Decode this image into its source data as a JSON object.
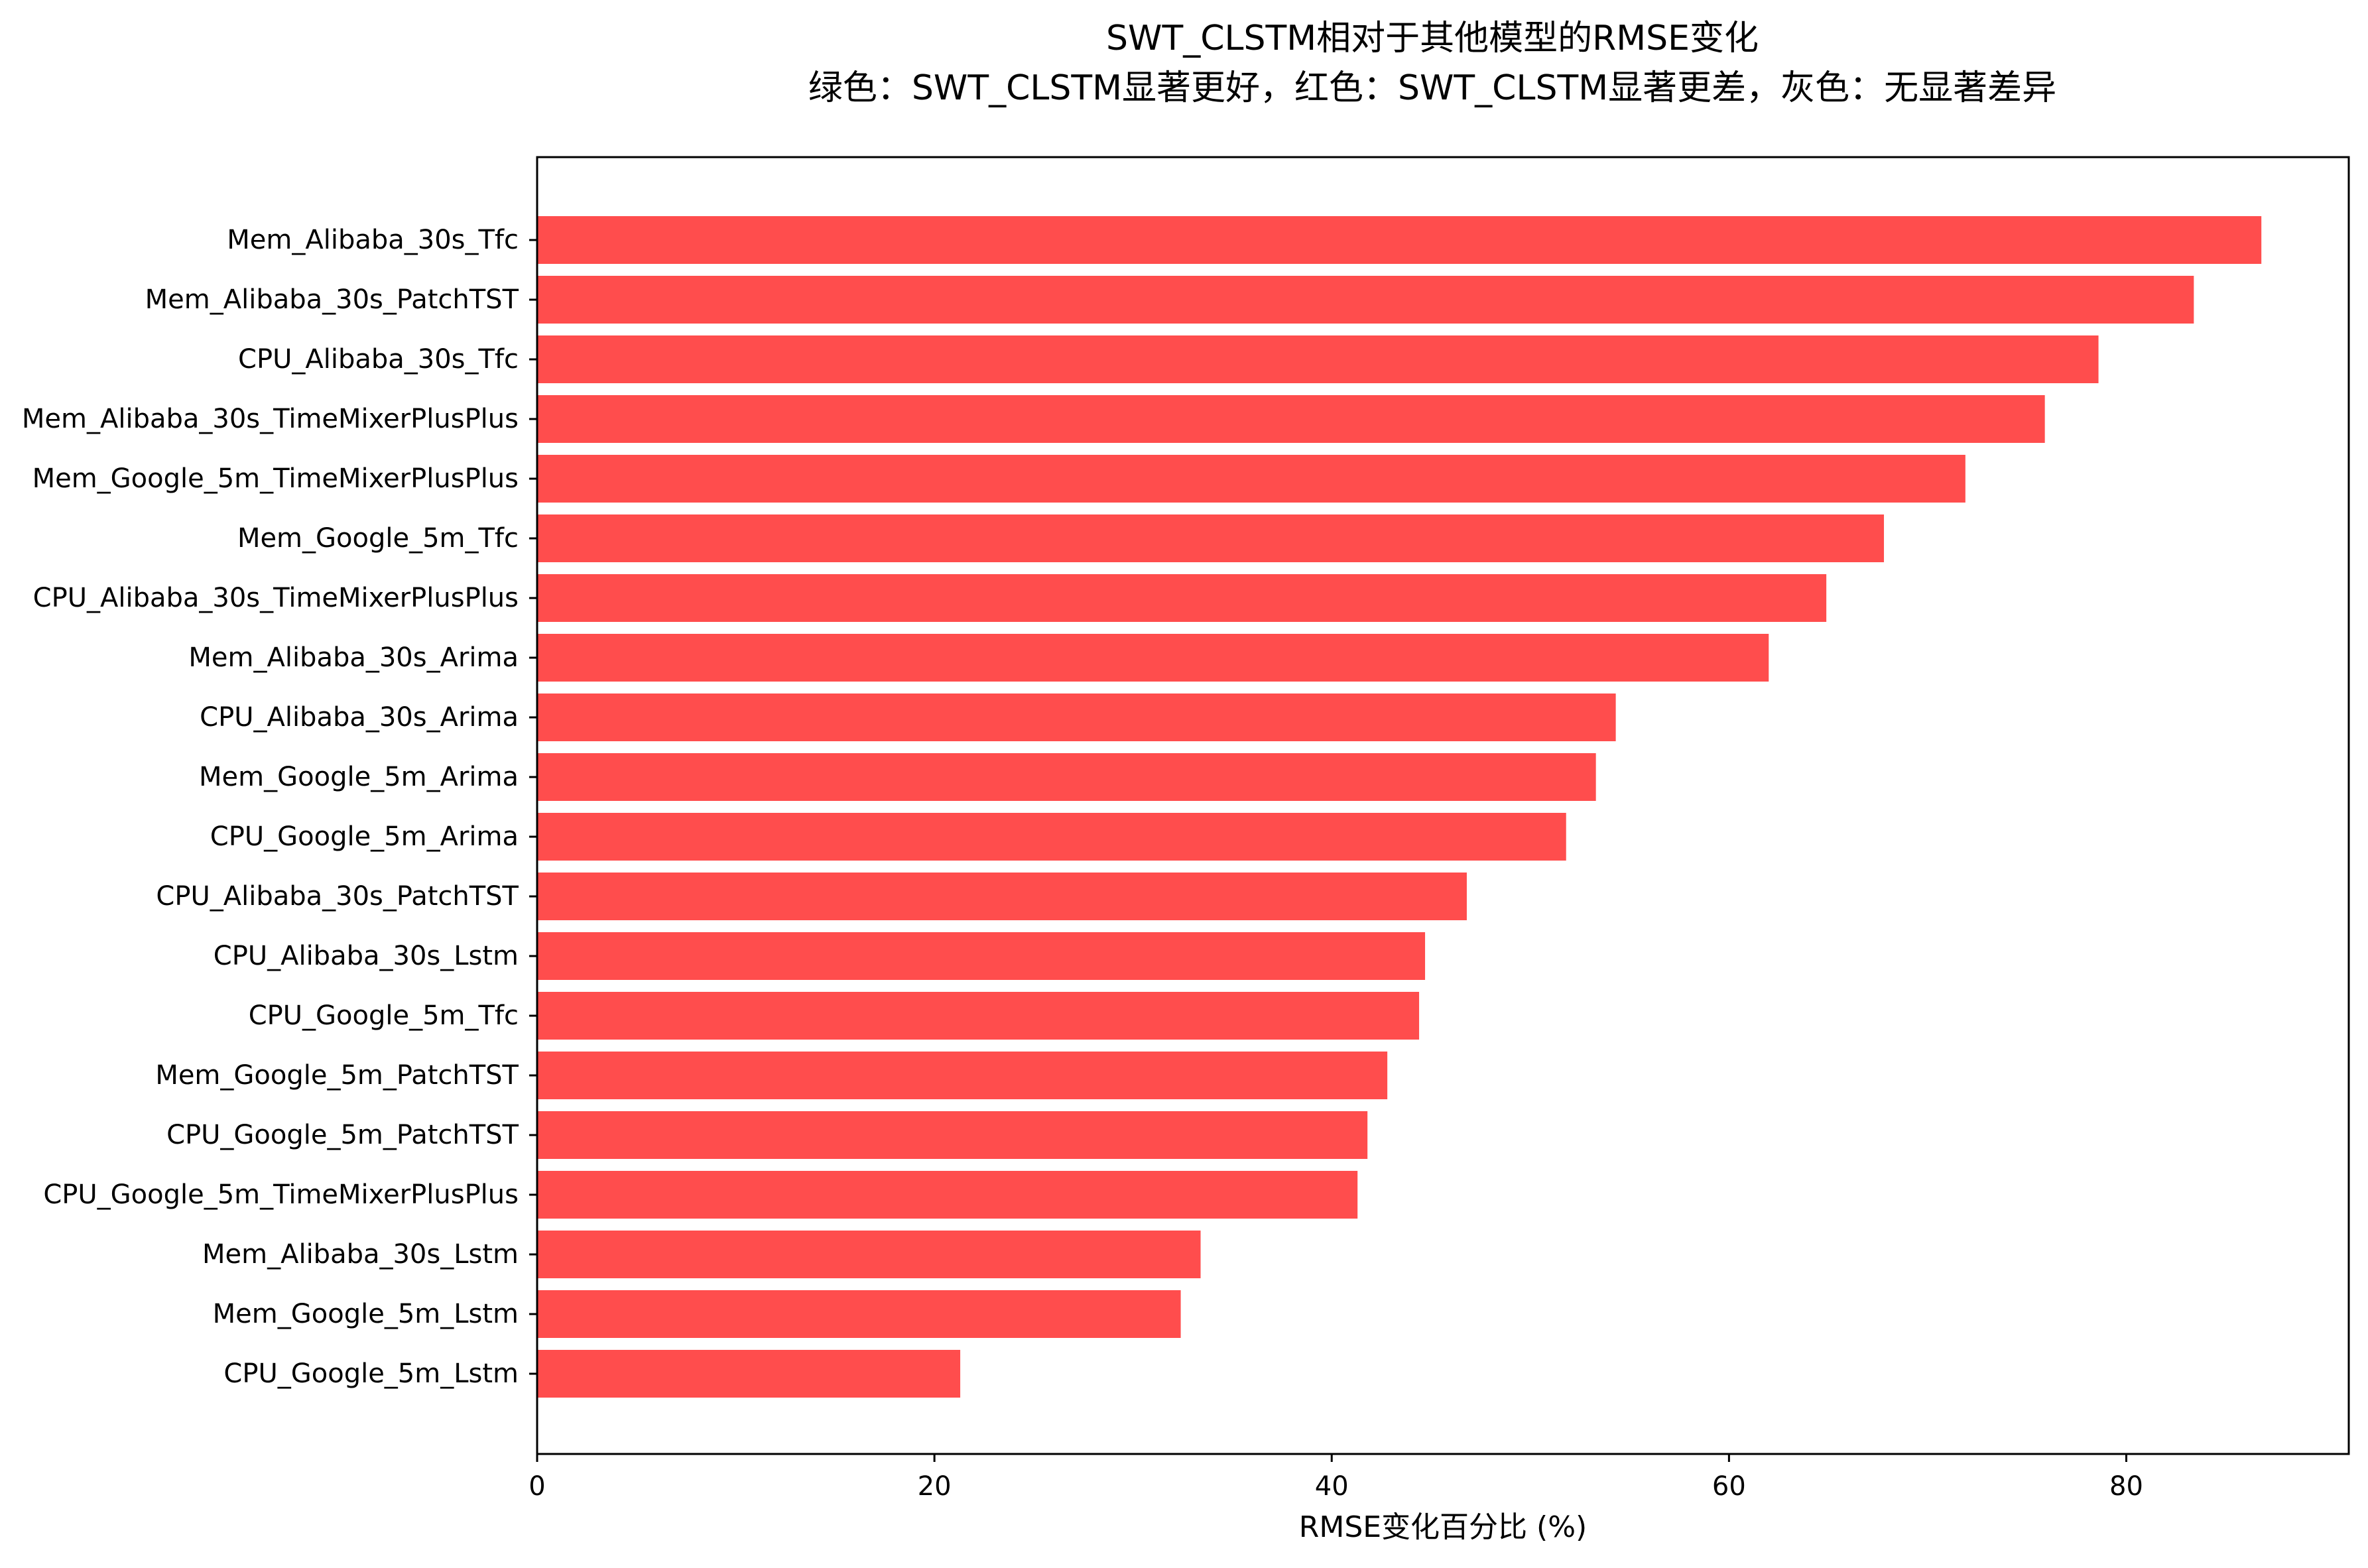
{
  "chart_data": {
    "type": "bar",
    "orientation": "horizontal",
    "title": "SWT_CLSTM相对于其他模型的RMSE变化",
    "subtitle": "绿色：SWT_CLSTM显著更好，红色：SWT_CLSTM显著更差，灰色：无显著差异",
    "xlabel": "RMSE变化百分比 (%)",
    "ylabel": "",
    "xlim": [
      0,
      91.2
    ],
    "xticks": [
      0,
      20,
      40,
      60,
      80
    ],
    "grid": false,
    "bar_color": "#ff4d4d",
    "categories": [
      "Mem_Alibaba_30s_Tfc",
      "Mem_Alibaba_30s_PatchTST",
      "CPU_Alibaba_30s_Tfc",
      "Mem_Alibaba_30s_TimeMixerPlusPlus",
      "Mem_Google_5m_TimeMixerPlusPlus",
      "Mem_Google_5m_Tfc",
      "CPU_Alibaba_30s_TimeMixerPlusPlus",
      "Mem_Alibaba_30s_Arima",
      "CPU_Alibaba_30s_Arima",
      "Mem_Google_5m_Arima",
      "CPU_Google_5m_Arima",
      "CPU_Alibaba_30s_PatchTST",
      "CPU_Alibaba_30s_Lstm",
      "CPU_Google_5m_Tfc",
      "Mem_Google_5m_PatchTST",
      "CPU_Google_5m_PatchTST",
      "CPU_Google_5m_TimeMixerPlusPlus",
      "Mem_Alibaba_30s_Lstm",
      "Mem_Google_5m_Lstm",
      "CPU_Google_5m_Lstm"
    ],
    "values": [
      86.8,
      83.4,
      78.6,
      75.9,
      71.9,
      67.8,
      64.9,
      62.0,
      54.3,
      53.3,
      51.8,
      46.8,
      44.7,
      44.4,
      42.8,
      41.8,
      41.3,
      33.4,
      32.4,
      21.3
    ]
  }
}
